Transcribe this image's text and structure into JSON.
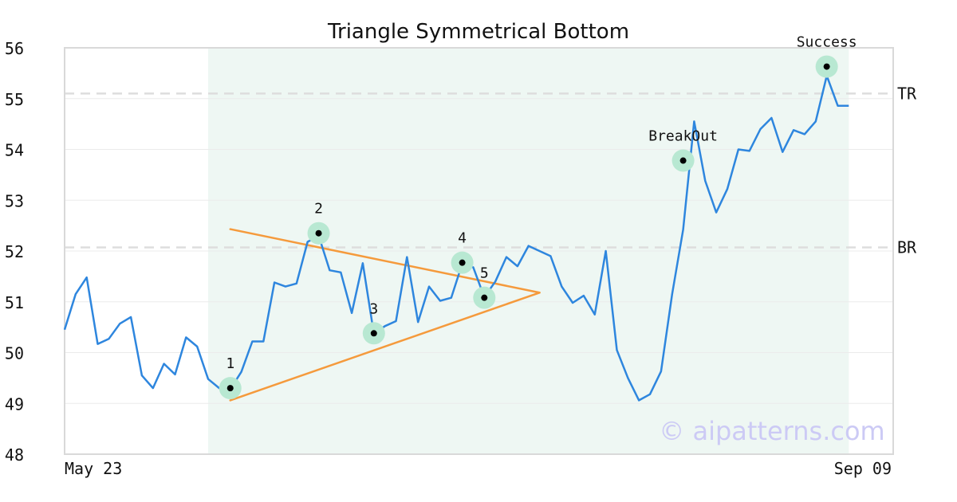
{
  "chart_data": {
    "type": "line",
    "title": "Triangle Symmetrical Bottom",
    "xlabel": "",
    "ylabel": "",
    "ylim": [
      48,
      56
    ],
    "yticks": [
      48,
      49,
      50,
      51,
      52,
      53,
      54,
      55,
      56
    ],
    "x_tick_labels": [
      "May 23",
      "Sep 09"
    ],
    "n_points": 72,
    "grid": true,
    "series": [
      {
        "values": [
          50.45,
          51.15,
          51.48,
          50.17,
          50.27,
          50.57,
          50.7,
          49.55,
          49.3,
          49.78,
          49.57,
          50.3,
          50.12,
          49.48,
          49.3,
          49.28,
          49.62,
          50.22,
          50.22,
          51.38,
          51.3,
          51.36,
          52.18,
          52.3,
          51.62,
          51.58,
          50.78,
          51.76,
          50.37,
          50.52,
          50.62,
          51.88,
          50.6,
          51.3,
          51.02,
          51.08,
          51.75,
          51.68,
          51.09,
          51.4,
          51.88,
          51.7,
          52.1,
          52.0,
          51.9,
          51.3,
          50.98,
          51.12,
          50.75,
          52.0,
          50.05,
          49.5,
          49.06,
          49.18,
          49.63,
          51.15,
          52.42,
          54.55,
          53.38,
          52.76,
          53.22,
          54.0,
          53.97,
          54.4,
          54.62,
          53.95,
          54.38,
          54.3,
          54.55,
          55.45,
          54.86,
          54.86
        ],
        "color": "#2e86de"
      }
    ],
    "pattern_region": {
      "x_start": 13,
      "x_end": 71,
      "color": "#eef7f3"
    },
    "triangle": {
      "upper": [
        [
          15,
          52.43
        ],
        [
          43,
          51.18
        ]
      ],
      "lower": [
        [
          15,
          49.06
        ],
        [
          43,
          51.18
        ]
      ],
      "color": "#f59a3c"
    },
    "levels": [
      {
        "label": "TR",
        "value": 55.1
      },
      {
        "label": "BR",
        "value": 52.07
      }
    ],
    "points": [
      {
        "label": "1",
        "x": 15,
        "y": 49.3
      },
      {
        "label": "2",
        "x": 23,
        "y": 52.35
      },
      {
        "label": "3",
        "x": 28,
        "y": 50.38
      },
      {
        "label": "4",
        "x": 36,
        "y": 51.77
      },
      {
        "label": "5",
        "x": 38,
        "y": 51.08
      },
      {
        "label": "BreakOut",
        "x": 56,
        "y": 53.78
      },
      {
        "label": "Success",
        "x": 69,
        "y": 55.63
      }
    ],
    "watermark": "© aipatterns.com"
  }
}
